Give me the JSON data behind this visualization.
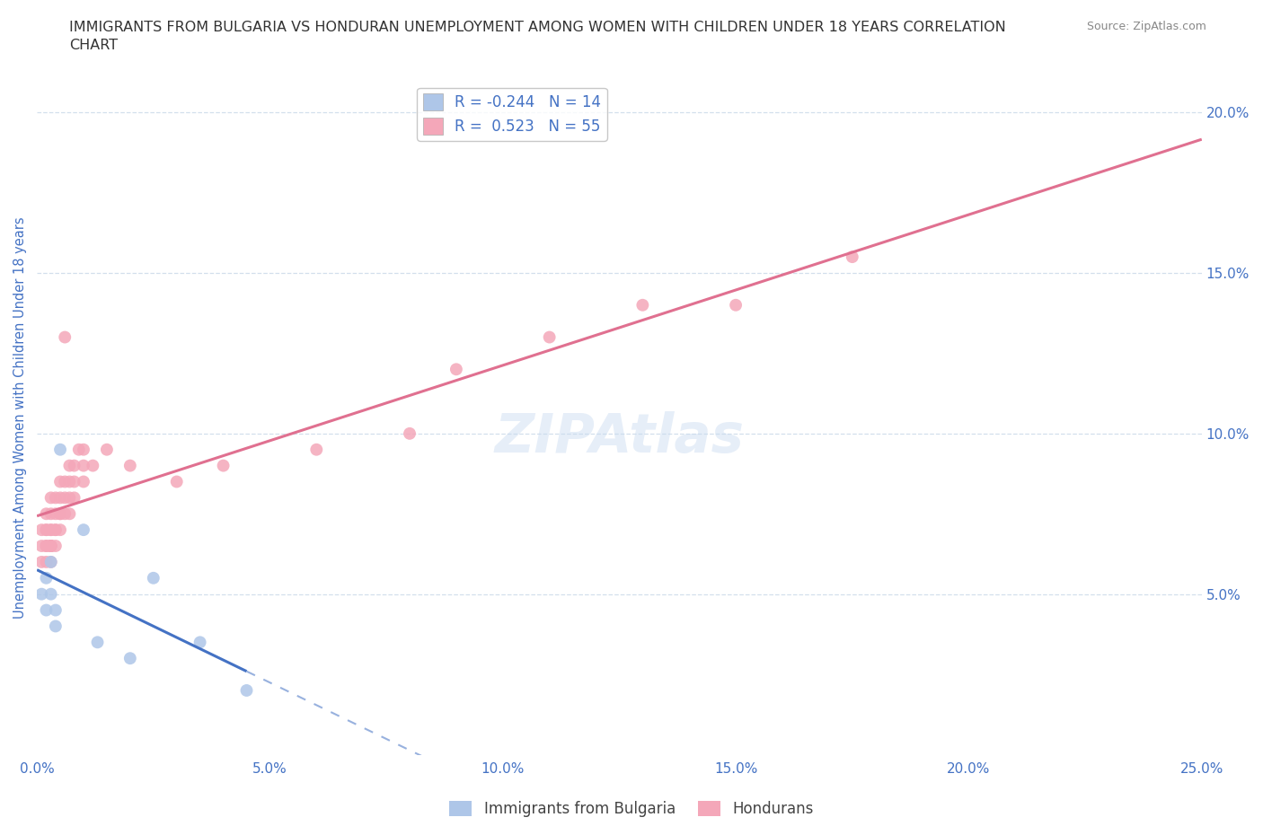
{
  "title": "IMMIGRANTS FROM BULGARIA VS HONDURAN UNEMPLOYMENT AMONG WOMEN WITH CHILDREN UNDER 18 YEARS CORRELATION\nCHART",
  "source": "Source: ZipAtlas.com",
  "ylabel": "Unemployment Among Women with Children Under 18 years",
  "xlabel": "",
  "xlim": [
    0.0,
    0.25
  ],
  "ylim": [
    0.0,
    0.21
  ],
  "xticks": [
    0.0,
    0.05,
    0.1,
    0.15,
    0.2,
    0.25
  ],
  "xticklabels": [
    "0.0%",
    "5.0%",
    "10.0%",
    "15.0%",
    "20.0%",
    "25.0%"
  ],
  "yticks": [
    0.05,
    0.1,
    0.15,
    0.2
  ],
  "yticklabels": [
    "5.0%",
    "10.0%",
    "15.0%",
    "20.0%"
  ],
  "legend_r_bulgaria": "-0.244",
  "legend_n_bulgaria": "14",
  "legend_r_honduran": "0.523",
  "legend_n_honduran": "55",
  "bulgaria_color": "#aec6e8",
  "honduran_color": "#f4a7b9",
  "bulgaria_line_color": "#4472c4",
  "honduran_line_color": "#e07090",
  "grid_color": "#c8d8e8",
  "watermark": "ZIPAtlas",
  "bg_color": "#ffffff",
  "title_color": "#333333",
  "axis_label_color": "#4472c4",
  "tick_label_color": "#4472c4",
  "bulgaria_scatter_x": [
    0.001,
    0.002,
    0.002,
    0.003,
    0.003,
    0.004,
    0.004,
    0.005,
    0.01,
    0.013,
    0.02,
    0.025,
    0.035,
    0.045
  ],
  "bulgaria_scatter_y": [
    0.05,
    0.045,
    0.055,
    0.06,
    0.05,
    0.045,
    0.04,
    0.095,
    0.07,
    0.035,
    0.03,
    0.055,
    0.035,
    0.02
  ],
  "honduran_scatter_x": [
    0.001,
    0.001,
    0.001,
    0.002,
    0.002,
    0.002,
    0.002,
    0.002,
    0.002,
    0.003,
    0.003,
    0.003,
    0.003,
    0.003,
    0.003,
    0.003,
    0.003,
    0.003,
    0.004,
    0.004,
    0.004,
    0.004,
    0.004,
    0.005,
    0.005,
    0.005,
    0.005,
    0.005,
    0.006,
    0.006,
    0.006,
    0.006,
    0.007,
    0.007,
    0.007,
    0.007,
    0.008,
    0.008,
    0.008,
    0.009,
    0.01,
    0.01,
    0.01,
    0.012,
    0.015,
    0.02,
    0.03,
    0.04,
    0.06,
    0.08,
    0.09,
    0.11,
    0.13,
    0.15,
    0.175
  ],
  "honduran_scatter_y": [
    0.06,
    0.065,
    0.07,
    0.06,
    0.065,
    0.07,
    0.075,
    0.07,
    0.065,
    0.06,
    0.065,
    0.065,
    0.07,
    0.065,
    0.07,
    0.075,
    0.08,
    0.065,
    0.065,
    0.07,
    0.075,
    0.07,
    0.08,
    0.07,
    0.075,
    0.075,
    0.08,
    0.085,
    0.075,
    0.08,
    0.085,
    0.13,
    0.075,
    0.08,
    0.085,
    0.09,
    0.08,
    0.085,
    0.09,
    0.095,
    0.085,
    0.09,
    0.095,
    0.09,
    0.095,
    0.09,
    0.085,
    0.09,
    0.095,
    0.1,
    0.12,
    0.13,
    0.14,
    0.14,
    0.155
  ],
  "figsize": [
    14.06,
    9.3
  ],
  "dpi": 100
}
